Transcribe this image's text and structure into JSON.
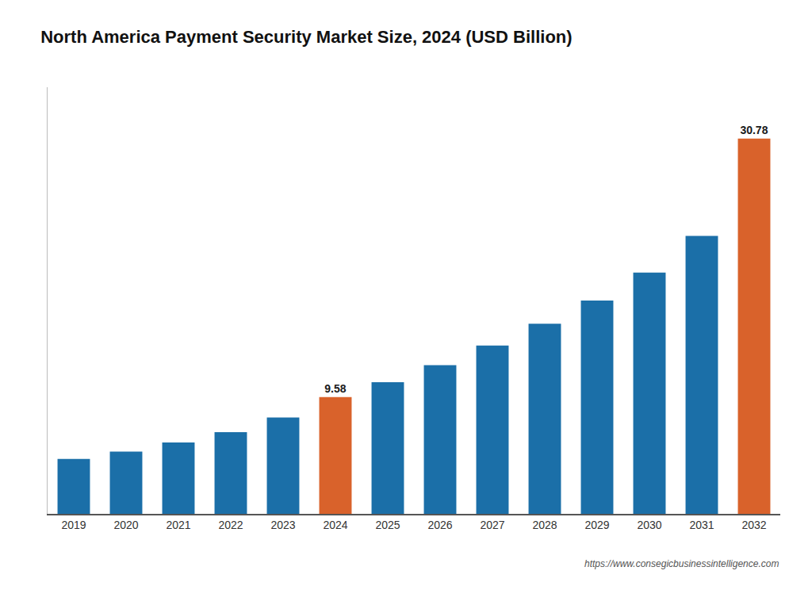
{
  "chart_data": {
    "type": "bar",
    "title": "North America Payment Security Market Size, 2024 (USD Billion)",
    "categories": [
      "2019",
      "2020",
      "2021",
      "2022",
      "2023",
      "2024",
      "2025",
      "2026",
      "2027",
      "2028",
      "2029",
      "2030",
      "2031",
      "2032"
    ],
    "values": [
      4.5,
      5.1,
      5.85,
      6.7,
      7.9,
      9.58,
      10.8,
      12.2,
      13.8,
      15.6,
      17.5,
      19.8,
      22.8,
      30.78
    ],
    "value_labels": [
      null,
      null,
      null,
      null,
      null,
      "9.58",
      null,
      null,
      null,
      null,
      null,
      null,
      null,
      "30.78"
    ],
    "data_labels": true,
    "colors": [
      "#1b6fa8",
      "#1b6fa8",
      "#1b6fa8",
      "#1b6fa8",
      "#1b6fa8",
      "#d9622b",
      "#1b6fa8",
      "#1b6fa8",
      "#1b6fa8",
      "#1b6fa8",
      "#1b6fa8",
      "#1b6fa8",
      "#1b6fa8",
      "#d9622b"
    ],
    "ylim": [
      0,
      35
    ],
    "yticks": [],
    "tick_labels": "x",
    "grid": false,
    "annotations": [
      "https://www.consegicbusinessintelligence.com"
    ]
  }
}
